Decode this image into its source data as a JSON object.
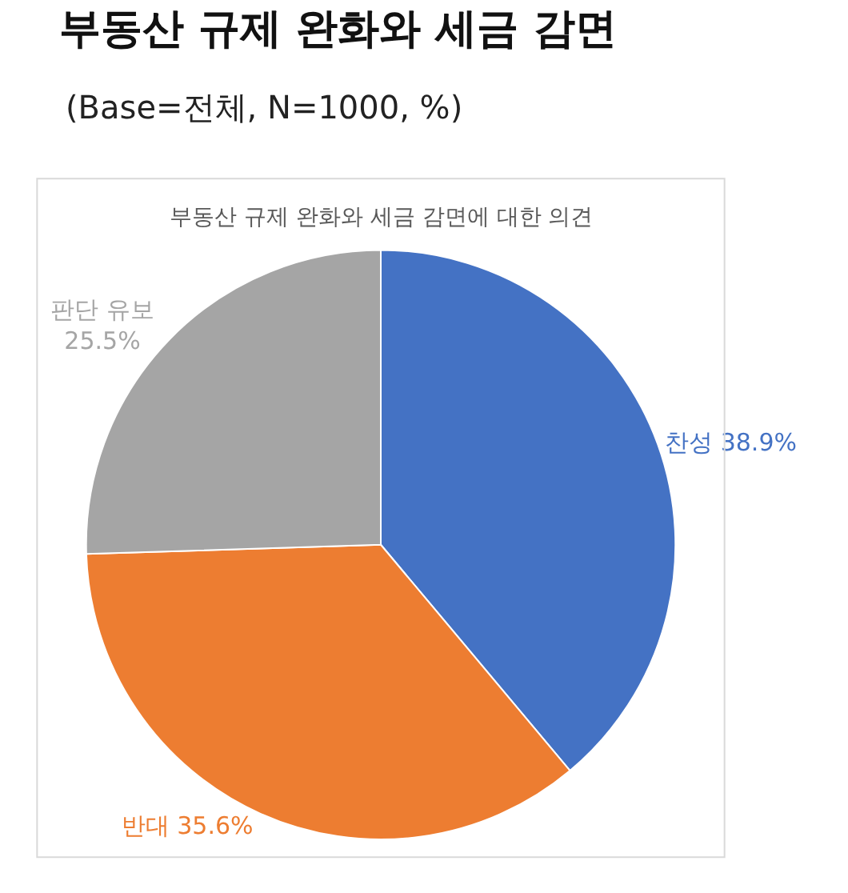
{
  "chart_data": {
    "type": "pie",
    "title": "부동산 규제 완화와 세금 감면",
    "subtitle": "(Base=전체, N=1000, %)",
    "annotations": [
      "부동산 규제 완화와 세금 감면에 대한 의견"
    ],
    "categories": [
      "찬성",
      "반대",
      "판단 유보"
    ],
    "values": [
      38.9,
      35.6,
      25.5
    ],
    "value_labels": [
      "38.9%",
      "35.6%",
      "25.5%"
    ],
    "colors": [
      "#4472c4",
      "#ed7d31",
      "#a5a5a5"
    ],
    "legend": false
  }
}
